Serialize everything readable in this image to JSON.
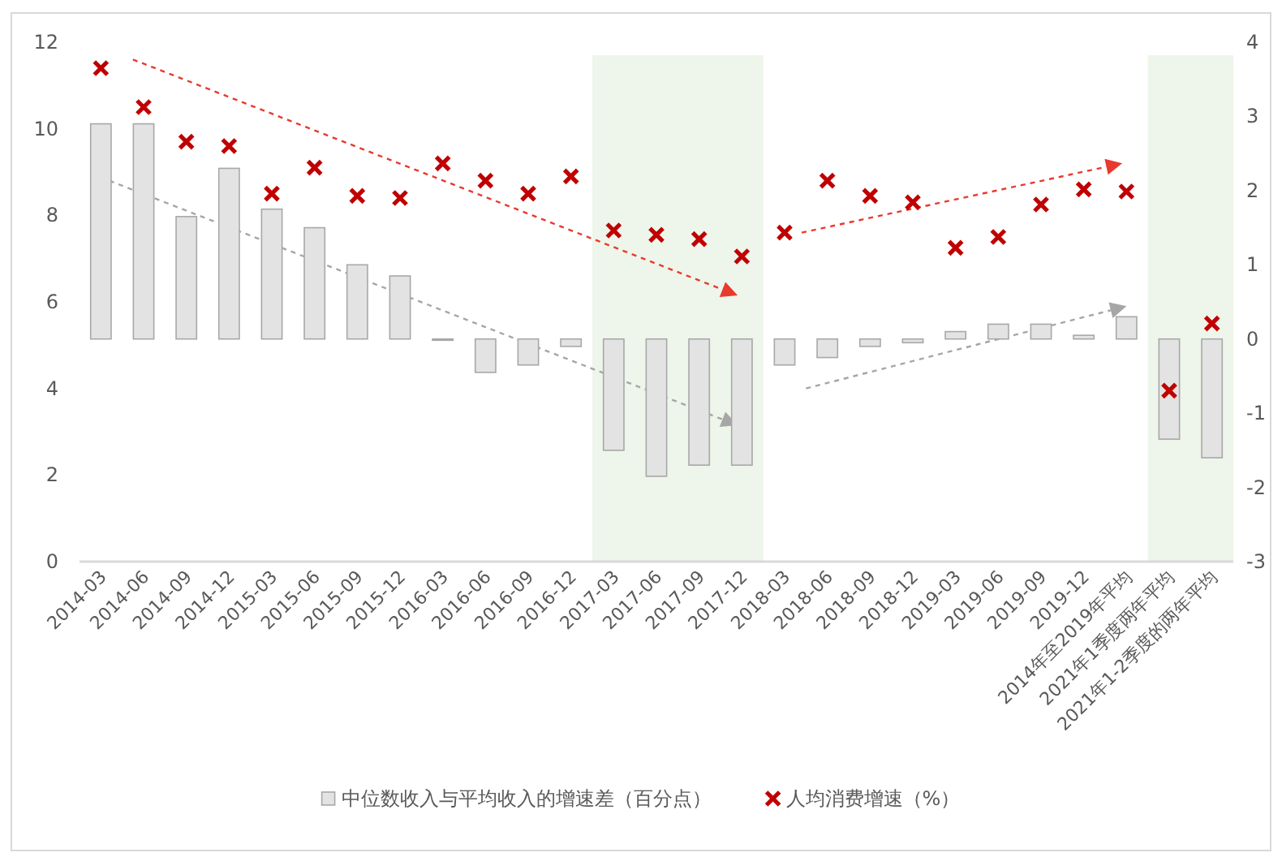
{
  "chart_data": {
    "type": "bar",
    "categories": [
      "2014-03",
      "2014-06",
      "2014-09",
      "2014-12",
      "2015-03",
      "2015-06",
      "2015-09",
      "2015-12",
      "2016-03",
      "2016-06",
      "2016-09",
      "2016-12",
      "2017-03",
      "2017-06",
      "2017-09",
      "2017-12",
      "2018-03",
      "2018-06",
      "2018-09",
      "2018-12",
      "2019-03",
      "2019-06",
      "2019-09",
      "2019-12",
      "2014年至2019年平均",
      "2021年1季度两年平均",
      "2021年1-2季度的两年平均"
    ],
    "series": [
      {
        "name": "中位数收入与平均收入的增速差（百分点）",
        "axis": "y2",
        "color": "#e3e3e3",
        "values": [
          2.9,
          2.9,
          1.65,
          2.3,
          1.75,
          1.5,
          1.0,
          0.85,
          0.0,
          -0.45,
          -0.35,
          -0.1,
          -1.5,
          -1.85,
          -1.7,
          -1.7,
          -0.35,
          -0.25,
          -0.1,
          -0.05,
          0.1,
          0.2,
          0.2,
          0.05,
          0.3,
          -1.35,
          -1.6
        ]
      },
      {
        "name": "人均消费增速（%）",
        "type": "scatter",
        "marker": "cross",
        "color": "#c00000",
        "values": [
          11.4,
          10.5,
          9.7,
          9.6,
          8.5,
          9.1,
          8.45,
          8.4,
          9.2,
          8.8,
          8.5,
          8.9,
          7.65,
          7.55,
          7.45,
          7.05,
          7.6,
          8.8,
          8.45,
          8.3,
          7.25,
          7.5,
          8.25,
          8.6,
          8.55,
          3.95,
          5.5
        ]
      }
    ],
    "ylim": [
      0,
      12
    ],
    "yticks": [
      0,
      2,
      4,
      6,
      8,
      10,
      12
    ],
    "y2lim": [
      -3,
      4
    ],
    "y2ticks": [
      -3,
      -2,
      -1,
      0,
      1,
      2,
      3,
      4
    ],
    "bands": [
      {
        "axis": "x",
        "from": "2017-03",
        "to": "2017-12",
        "color": "#eef5ea"
      },
      {
        "axis": "x",
        "from": "2021年1季度两年平均",
        "to": "2021年1-2季度的两年平均",
        "color": "#eef5ea"
      }
    ],
    "legend": "bottom"
  }
}
